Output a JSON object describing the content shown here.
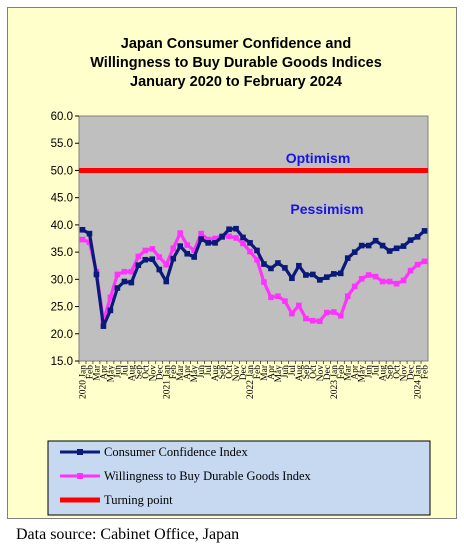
{
  "source_note": "Data source: Cabinet Office, Japan",
  "chart_data": {
    "type": "line",
    "title": [
      "Japan Consumer Confidence and",
      "Willingness to Buy Durable Goods Indices",
      "January 2020 to February 2024"
    ],
    "xlabel": "",
    "ylabel": "",
    "ylim": [
      15,
      60
    ],
    "yticks": [
      "15.0",
      "20.0",
      "25.0",
      "30.0",
      "35.0",
      "40.0",
      "45.0",
      "50.0",
      "55.0",
      "60.0"
    ],
    "x_ticks": [
      "2020 Jan",
      "Feb",
      "Mar",
      "Apr",
      "May",
      "Jun",
      "Jul",
      "Aug",
      "Sep",
      "Oct",
      "Nov",
      "Dec",
      "2021 Jan",
      "Feb",
      "Mar",
      "Apr",
      "May",
      "Jun",
      "Jul",
      "Aug",
      "Sep",
      "Oct",
      "Nov",
      "Dec",
      "2022 Jan",
      "Feb",
      "Mar",
      "Apr",
      "May",
      "Jun",
      "Jul",
      "Aug",
      "Sep",
      "Oct",
      "Nov",
      "Dec",
      "2023 Jan",
      "Feb",
      "Mar",
      "Apr",
      "May",
      "Jun",
      "Jul",
      "Aug",
      "Sep",
      "Oct",
      "Nov",
      "Dec",
      "2024 Jan",
      "Feb"
    ],
    "grid": false,
    "annotations": [
      "Optimism",
      "Pessimism"
    ],
    "series": [
      {
        "name": "Consumer Confidence Index",
        "color": "#0a1a7a",
        "marker": "square",
        "values": [
          39.1,
          38.4,
          30.9,
          21.4,
          24.3,
          28.4,
          29.6,
          29.4,
          32.6,
          33.6,
          33.7,
          31.8,
          29.6,
          33.8,
          36.1,
          34.7,
          34.1,
          37.4,
          36.7,
          36.7,
          37.8,
          39.2,
          39.3,
          37.7,
          36.7,
          35.3,
          32.8,
          32.0,
          33.0,
          32.1,
          30.2,
          32.5,
          30.8,
          30.9,
          29.9,
          30.4,
          31.0,
          31.1,
          33.9,
          35.0,
          36.2,
          36.2,
          37.1,
          36.2,
          35.2,
          35.7,
          36.1,
          37.2,
          37.8,
          38.9
        ]
      },
      {
        "name": "Willingness to Buy Durable Goods Index",
        "color": "#ff33ff",
        "marker": "square",
        "values": [
          37.3,
          36.8,
          31.4,
          22.4,
          26.7,
          30.9,
          31.4,
          31.4,
          34.2,
          35.3,
          35.6,
          34.1,
          32.7,
          35.7,
          38.5,
          36.3,
          35.3,
          38.4,
          37.3,
          37.5,
          38.0,
          37.9,
          37.6,
          36.6,
          35.1,
          33.6,
          29.5,
          26.7,
          26.9,
          26.0,
          23.7,
          25.2,
          22.8,
          22.4,
          22.3,
          23.9,
          24.0,
          23.3,
          26.9,
          28.7,
          30.1,
          30.8,
          30.5,
          29.6,
          29.6,
          29.2,
          29.8,
          31.6,
          32.7,
          33.3
        ]
      },
      {
        "name": "Turning point",
        "color": "#ff0000",
        "marker": "none",
        "values": [
          50,
          50,
          50,
          50,
          50,
          50,
          50,
          50,
          50,
          50,
          50,
          50,
          50,
          50,
          50,
          50,
          50,
          50,
          50,
          50,
          50,
          50,
          50,
          50,
          50,
          50,
          50,
          50,
          50,
          50,
          50,
          50,
          50,
          50,
          50,
          50,
          50,
          50,
          50,
          50,
          50,
          50,
          50,
          50,
          50,
          50,
          50,
          50,
          50,
          50
        ]
      }
    ],
    "legend_position": "bottom"
  }
}
